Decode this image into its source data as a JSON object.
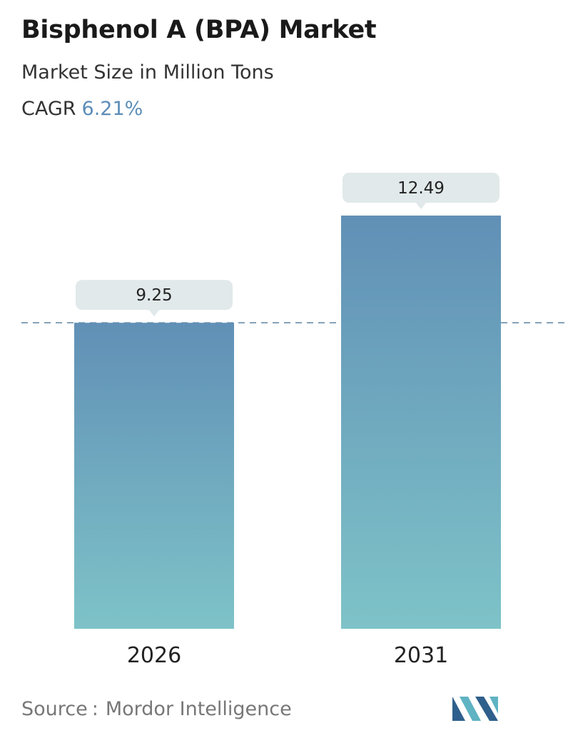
{
  "header": {
    "title": "Bisphenol A (BPA) Market",
    "subtitle": "Market Size in Million Tons",
    "cagr_label": "CAGR",
    "cagr_value": "6.21%"
  },
  "chart_data": {
    "type": "bar",
    "categories": [
      "2026",
      "2031"
    ],
    "values": [
      9.25,
      12.49
    ],
    "value_labels": [
      "9.25",
      "12.49"
    ],
    "reference_line": 9.25,
    "grid": false,
    "legend": "none"
  },
  "footer": {
    "source_label": "Source",
    "source_separator": ":",
    "source_value": "Mordor Intelligence"
  },
  "colors": {
    "bar_top": "#6190b6",
    "bar_bottom": "#7ec3c8",
    "label_bg": "#e1e9ea",
    "dashed_line": "#5e84a3",
    "cagr_accent": "#5b8db8",
    "logo_dark": "#2f5f8c",
    "logo_light": "#5fb3c2"
  }
}
